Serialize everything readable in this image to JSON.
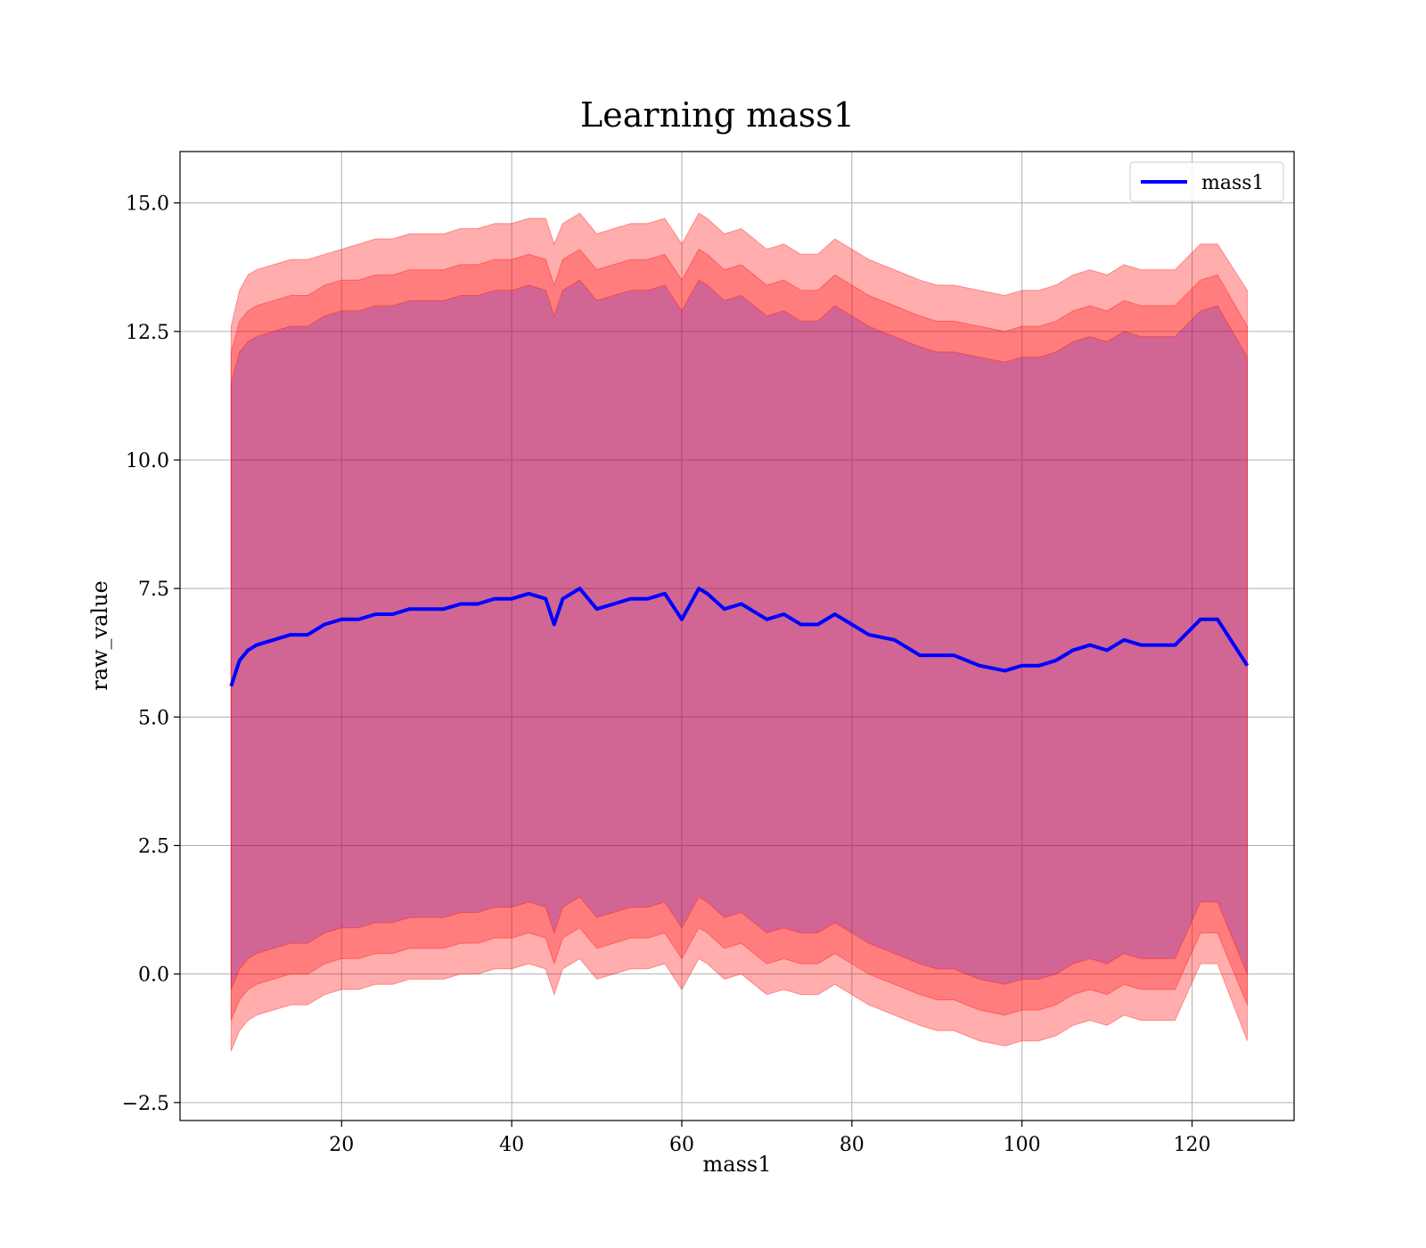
{
  "chart_data": {
    "type": "line",
    "title": "Learning mass1",
    "xlabel": "mass1",
    "ylabel": "raw_value",
    "xlim": [
      1,
      132
    ],
    "ylim": [
      -2.85,
      16.0
    ],
    "xticks": [
      20,
      40,
      60,
      80,
      100,
      120
    ],
    "xtick_labels": [
      "20",
      "40",
      "60",
      "80",
      "100",
      "120"
    ],
    "yticks": [
      -2.5,
      0.0,
      2.5,
      5.0,
      7.5,
      10.0,
      12.5,
      15.0
    ],
    "ytick_labels": [
      "−2.5",
      "0.0",
      "2.5",
      "5.0",
      "7.5",
      "10.0",
      "12.5",
      "15.0"
    ],
    "grid": true,
    "legend": {
      "position": "top-right",
      "entries": [
        "mass1"
      ]
    },
    "colors": {
      "line": "#0000ff",
      "band": "#ff0000",
      "band_inner": "#0000ff",
      "grid": "#b0b0b0"
    },
    "series": [
      {
        "name": "mass1",
        "x": [
          7,
          8,
          9,
          10,
          12,
          14,
          16,
          18,
          20,
          22,
          24,
          26,
          28,
          30,
          32,
          34,
          36,
          38,
          40,
          42,
          44,
          45,
          46,
          48,
          50,
          52,
          54,
          56,
          58,
          60,
          62,
          63,
          65,
          67,
          70,
          72,
          74,
          76,
          78,
          80,
          82,
          85,
          88,
          90,
          92,
          95,
          98,
          100,
          102,
          104,
          106,
          108,
          110,
          112,
          114,
          116,
          118,
          121,
          123,
          126.5
        ],
        "y": [
          5.6,
          6.1,
          6.3,
          6.4,
          6.5,
          6.6,
          6.6,
          6.8,
          6.9,
          6.9,
          7.0,
          7.0,
          7.1,
          7.1,
          7.1,
          7.2,
          7.2,
          7.3,
          7.3,
          7.4,
          7.3,
          6.8,
          7.3,
          7.5,
          7.1,
          7.2,
          7.3,
          7.3,
          7.4,
          6.9,
          7.5,
          7.4,
          7.1,
          7.2,
          6.9,
          7.0,
          6.8,
          6.8,
          7.0,
          6.8,
          6.6,
          6.5,
          6.2,
          6.2,
          6.2,
          6.0,
          5.9,
          6.0,
          6.0,
          6.1,
          6.3,
          6.4,
          6.3,
          6.5,
          6.4,
          6.4,
          6.4,
          6.9,
          6.9,
          6.0
        ]
      }
    ],
    "bands": [
      {
        "x": [
          7,
          8,
          9,
          10,
          12,
          14,
          16,
          18,
          20,
          22,
          24,
          26,
          28,
          30,
          32,
          34,
          36,
          38,
          40,
          42,
          44,
          45,
          46,
          48,
          50,
          52,
          54,
          56,
          58,
          60,
          62,
          63,
          65,
          67,
          70,
          72,
          74,
          76,
          78,
          80,
          82,
          85,
          88,
          90,
          92,
          95,
          98,
          100,
          102,
          104,
          106,
          108,
          110,
          112,
          114,
          116,
          118,
          121,
          123,
          126.5
        ],
        "upper": [
          12.6,
          13.3,
          13.6,
          13.7,
          13.8,
          13.9,
          13.9,
          14.0,
          14.1,
          14.2,
          14.3,
          14.3,
          14.4,
          14.4,
          14.4,
          14.5,
          14.5,
          14.6,
          14.6,
          14.7,
          14.7,
          14.2,
          14.6,
          14.8,
          14.4,
          14.5,
          14.6,
          14.6,
          14.7,
          14.2,
          14.8,
          14.7,
          14.4,
          14.5,
          14.1,
          14.2,
          14.0,
          14.0,
          14.3,
          14.1,
          13.9,
          13.7,
          13.5,
          13.4,
          13.4,
          13.3,
          13.2,
          13.3,
          13.3,
          13.4,
          13.6,
          13.7,
          13.6,
          13.8,
          13.7,
          13.7,
          13.7,
          14.2,
          14.2,
          13.3
        ],
        "lower": [
          -1.5,
          -1.1,
          -0.9,
          -0.8,
          -0.7,
          -0.6,
          -0.6,
          -0.4,
          -0.3,
          -0.3,
          -0.2,
          -0.2,
          -0.1,
          -0.1,
          -0.1,
          0.0,
          0.0,
          0.1,
          0.1,
          0.2,
          0.1,
          -0.4,
          0.1,
          0.3,
          -0.1,
          0.0,
          0.1,
          0.1,
          0.2,
          -0.3,
          0.3,
          0.2,
          -0.1,
          0.0,
          -0.4,
          -0.3,
          -0.4,
          -0.4,
          -0.2,
          -0.4,
          -0.6,
          -0.8,
          -1.0,
          -1.1,
          -1.1,
          -1.3,
          -1.4,
          -1.3,
          -1.3,
          -1.2,
          -1.0,
          -0.9,
          -1.0,
          -0.8,
          -0.9,
          -0.9,
          -0.9,
          0.2,
          0.2,
          -1.3
        ]
      },
      {
        "x": [
          7,
          8,
          9,
          10,
          12,
          14,
          16,
          18,
          20,
          22,
          24,
          26,
          28,
          30,
          32,
          34,
          36,
          38,
          40,
          42,
          44,
          45,
          46,
          48,
          50,
          52,
          54,
          56,
          58,
          60,
          62,
          63,
          65,
          67,
          70,
          72,
          74,
          76,
          78,
          80,
          82,
          85,
          88,
          90,
          92,
          95,
          98,
          100,
          102,
          104,
          106,
          108,
          110,
          112,
          114,
          116,
          118,
          121,
          123,
          126.5
        ],
        "upper": [
          12.1,
          12.7,
          12.9,
          13.0,
          13.1,
          13.2,
          13.2,
          13.4,
          13.5,
          13.5,
          13.6,
          13.6,
          13.7,
          13.7,
          13.7,
          13.8,
          13.8,
          13.9,
          13.9,
          14.0,
          13.9,
          13.4,
          13.9,
          14.1,
          13.7,
          13.8,
          13.9,
          13.9,
          14.0,
          13.5,
          14.1,
          14.0,
          13.7,
          13.8,
          13.4,
          13.5,
          13.3,
          13.3,
          13.6,
          13.4,
          13.2,
          13.0,
          12.8,
          12.7,
          12.7,
          12.6,
          12.5,
          12.6,
          12.6,
          12.7,
          12.9,
          13.0,
          12.9,
          13.1,
          13.0,
          13.0,
          13.0,
          13.5,
          13.6,
          12.6
        ],
        "lower": [
          -0.9,
          -0.5,
          -0.3,
          -0.2,
          -0.1,
          0.0,
          0.0,
          0.2,
          0.3,
          0.3,
          0.4,
          0.4,
          0.5,
          0.5,
          0.5,
          0.6,
          0.6,
          0.7,
          0.7,
          0.8,
          0.7,
          0.2,
          0.7,
          0.9,
          0.5,
          0.6,
          0.7,
          0.7,
          0.8,
          0.3,
          0.9,
          0.8,
          0.5,
          0.6,
          0.2,
          0.3,
          0.2,
          0.2,
          0.4,
          0.2,
          0.0,
          -0.2,
          -0.4,
          -0.5,
          -0.5,
          -0.7,
          -0.8,
          -0.7,
          -0.7,
          -0.6,
          -0.4,
          -0.3,
          -0.4,
          -0.2,
          -0.3,
          -0.3,
          -0.3,
          0.8,
          0.8,
          -0.6
        ]
      },
      {
        "x": [
          7,
          8,
          9,
          10,
          12,
          14,
          16,
          18,
          20,
          22,
          24,
          26,
          28,
          30,
          32,
          34,
          36,
          38,
          40,
          42,
          44,
          45,
          46,
          48,
          50,
          52,
          54,
          56,
          58,
          60,
          62,
          63,
          65,
          67,
          70,
          72,
          74,
          76,
          78,
          80,
          82,
          85,
          88,
          90,
          92,
          95,
          98,
          100,
          102,
          104,
          106,
          108,
          110,
          112,
          114,
          116,
          118,
          121,
          123,
          126.5
        ],
        "upper": [
          11.5,
          12.1,
          12.3,
          12.4,
          12.5,
          12.6,
          12.6,
          12.8,
          12.9,
          12.9,
          13.0,
          13.0,
          13.1,
          13.1,
          13.1,
          13.2,
          13.2,
          13.3,
          13.3,
          13.4,
          13.3,
          12.8,
          13.3,
          13.5,
          13.1,
          13.2,
          13.3,
          13.3,
          13.4,
          12.9,
          13.5,
          13.4,
          13.1,
          13.2,
          12.8,
          12.9,
          12.7,
          12.7,
          13.0,
          12.8,
          12.6,
          12.4,
          12.2,
          12.1,
          12.1,
          12.0,
          11.9,
          12.0,
          12.0,
          12.1,
          12.3,
          12.4,
          12.3,
          12.5,
          12.4,
          12.4,
          12.4,
          12.9,
          13.0,
          12.0
        ],
        "lower": [
          -0.3,
          0.1,
          0.3,
          0.4,
          0.5,
          0.6,
          0.6,
          0.8,
          0.9,
          0.9,
          1.0,
          1.0,
          1.1,
          1.1,
          1.1,
          1.2,
          1.2,
          1.3,
          1.3,
          1.4,
          1.3,
          0.8,
          1.3,
          1.5,
          1.1,
          1.2,
          1.3,
          1.3,
          1.4,
          0.9,
          1.5,
          1.4,
          1.1,
          1.2,
          0.8,
          0.9,
          0.8,
          0.8,
          1.0,
          0.8,
          0.6,
          0.4,
          0.2,
          0.1,
          0.1,
          -0.1,
          -0.2,
          -0.1,
          -0.1,
          0.0,
          0.2,
          0.3,
          0.2,
          0.4,
          0.3,
          0.3,
          0.3,
          1.4,
          1.4,
          0.0
        ]
      }
    ]
  }
}
